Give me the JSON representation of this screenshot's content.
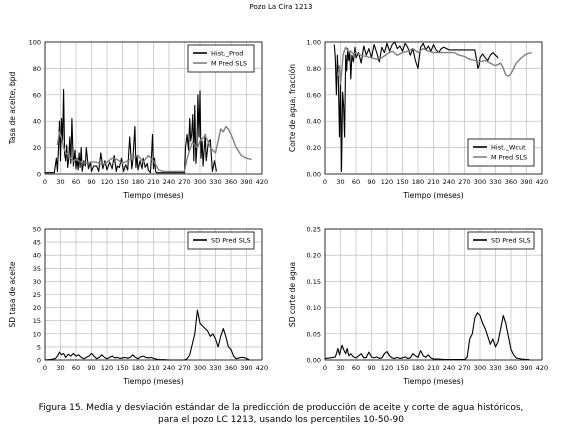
{
  "figure": {
    "title": "Pozo La Cira 1213",
    "caption_line1": "Figura 15. Media y desviación estándar de la predicción de producción de aceite y corte de agua históricos,",
    "caption_line2": "para el pozo LC 1213, usando los percentiles 10-50-90"
  },
  "colors": {
    "historic": "#000000",
    "predicted": "#808080",
    "sd": "#000000",
    "grid": "#b4b4b4"
  },
  "chart_data": [
    {
      "type": "line",
      "xlabel": "Tiempo (meses)",
      "ylabel": "Tasa de aceite, bpd",
      "xlim": [
        0,
        420
      ],
      "ylim": [
        0,
        100
      ],
      "xticks": [
        0,
        30,
        60,
        90,
        120,
        150,
        180,
        210,
        240,
        270,
        300,
        330,
        360,
        390,
        420
      ],
      "yticks": [
        0,
        20,
        40,
        60,
        80,
        100
      ],
      "ytick_labels": [
        "0",
        "20",
        "40",
        "60",
        "80",
        "100"
      ],
      "legend_position": "top-right",
      "grid": true,
      "series": [
        {
          "name": "Hist._Prod",
          "color": "#000000",
          "x": [
            0,
            10,
            18,
            22,
            24,
            26,
            28,
            30,
            32,
            34,
            36,
            38,
            40,
            42,
            44,
            46,
            48,
            50,
            52,
            55,
            58,
            60,
            62,
            64,
            66,
            68,
            70,
            72,
            75,
            78,
            80,
            84,
            88,
            90,
            94,
            100,
            104,
            108,
            112,
            116,
            120,
            125,
            130,
            134,
            138,
            140,
            144,
            148,
            152,
            156,
            160,
            164,
            168,
            170,
            174,
            176,
            178,
            180,
            184,
            188,
            190,
            194,
            198,
            200,
            204,
            206,
            208,
            210,
            212,
            214,
            216,
            220,
            230,
            240,
            250,
            260,
            266,
            270,
            272,
            275,
            278,
            280,
            282,
            284,
            286,
            288,
            290,
            292,
            294,
            296,
            298,
            300,
            302,
            304,
            306,
            308,
            310,
            312,
            316,
            320,
            324,
            328,
            332
          ],
          "y": [
            1,
            1,
            1,
            12,
            2,
            18,
            40,
            10,
            42,
            25,
            64,
            15,
            10,
            22,
            5,
            12,
            28,
            8,
            42,
            6,
            18,
            4,
            12,
            3,
            16,
            5,
            20,
            2,
            10,
            6,
            20,
            4,
            9,
            2,
            6,
            6,
            2,
            16,
            4,
            10,
            3,
            9,
            4,
            14,
            2,
            6,
            5,
            12,
            2,
            7,
            3,
            28,
            4,
            10,
            36,
            5,
            14,
            3,
            10,
            4,
            12,
            5,
            8,
            3,
            1,
            12,
            30,
            4,
            12,
            2,
            1,
            1,
            1,
            1,
            1,
            1,
            1,
            1,
            20,
            30,
            18,
            42,
            25,
            30,
            45,
            10,
            52,
            8,
            20,
            60,
            28,
            63,
            12,
            25,
            6,
            18,
            30,
            10,
            24,
            26,
            2,
            10,
            2
          ]
        },
        {
          "name": "M Pred SLS",
          "color": "#808080",
          "x": [
            24,
            28,
            32,
            36,
            40,
            45,
            50,
            55,
            60,
            70,
            80,
            90,
            100,
            110,
            120,
            130,
            140,
            150,
            160,
            170,
            180,
            190,
            200,
            210,
            220,
            230,
            240,
            250,
            260,
            270,
            275,
            280,
            285,
            290,
            295,
            300,
            305,
            310,
            315,
            320,
            325,
            330,
            335,
            340,
            345,
            350,
            355,
            360,
            370,
            380,
            390,
            400
          ],
          "y": [
            22,
            32,
            27,
            20,
            16,
            14,
            12,
            10,
            11,
            9,
            8,
            9,
            9,
            7,
            9,
            12,
            11,
            8,
            10,
            12,
            14,
            9,
            14,
            10,
            3,
            2,
            2,
            2,
            2,
            2,
            12,
            18,
            24,
            22,
            20,
            25,
            27,
            29,
            25,
            20,
            18,
            16,
            25,
            34,
            32,
            36,
            34,
            30,
            20,
            14,
            12,
            11
          ]
        }
      ]
    },
    {
      "type": "line",
      "xlabel": "Tiempo (meses)",
      "ylabel": "Corte de agua, fracción",
      "xlim": [
        0,
        420
      ],
      "ylim": [
        0,
        1
      ],
      "xticks": [
        0,
        30,
        60,
        90,
        120,
        150,
        180,
        210,
        240,
        270,
        300,
        330,
        360,
        390,
        420
      ],
      "yticks": [
        0,
        0.2,
        0.4,
        0.6,
        0.8,
        1.0
      ],
      "ytick_labels": [
        "0.00",
        "0.20",
        "0.40",
        "0.60",
        "0.80",
        "1.00"
      ],
      "legend_position": "bottom-right",
      "grid": true,
      "series": [
        {
          "name": "Hist._Wcut",
          "color": "#000000",
          "x": [
            18,
            20,
            22,
            24,
            26,
            28,
            30,
            32,
            34,
            36,
            38,
            40,
            42,
            44,
            46,
            48,
            50,
            52,
            55,
            58,
            60,
            65,
            70,
            75,
            80,
            85,
            90,
            95,
            100,
            105,
            110,
            115,
            120,
            125,
            130,
            135,
            140,
            145,
            150,
            155,
            160,
            165,
            170,
            175,
            180,
            185,
            190,
            195,
            200,
            205,
            210,
            215,
            220,
            225,
            230,
            240,
            250,
            260,
            270,
            280,
            290,
            294,
            296,
            298,
            300,
            305,
            310,
            315,
            320,
            325,
            330,
            335
          ],
          "y": [
            0.98,
            0.88,
            0.6,
            0.9,
            0.7,
            0.28,
            0.72,
            0.02,
            0.62,
            0.52,
            0.28,
            0.9,
            0.78,
            0.95,
            0.86,
            0.92,
            0.72,
            0.9,
            0.85,
            0.96,
            0.88,
            0.92,
            0.84,
            0.97,
            0.9,
            0.95,
            0.88,
            0.98,
            0.92,
            0.85,
            0.96,
            0.92,
            0.99,
            0.93,
            0.98,
            1.0,
            0.95,
            0.97,
            0.93,
            0.99,
            0.96,
            0.9,
            0.95,
            0.86,
            0.8,
            0.96,
            0.99,
            0.94,
            0.97,
            0.93,
            0.98,
            0.94,
            0.92,
            0.95,
            0.96,
            0.94,
            0.94,
            0.94,
            0.94,
            0.94,
            0.94,
            0.85,
            0.8,
            0.82,
            0.88,
            0.91,
            0.88,
            0.86,
            0.9,
            0.92,
            0.9,
            0.88
          ]
        },
        {
          "name": "M Pred SLS",
          "color": "#808080",
          "x": [
            24,
            28,
            30,
            32,
            35,
            38,
            40,
            45,
            50,
            55,
            60,
            70,
            80,
            90,
            100,
            110,
            120,
            130,
            140,
            150,
            160,
            170,
            180,
            190,
            200,
            210,
            220,
            230,
            240,
            250,
            260,
            270,
            280,
            290,
            300,
            310,
            320,
            330,
            340,
            345,
            350,
            355,
            360,
            365,
            370,
            380,
            390,
            400
          ],
          "y": [
            0.74,
            0.82,
            0.68,
            0.76,
            0.9,
            0.94,
            0.96,
            0.93,
            0.93,
            0.91,
            0.92,
            0.9,
            0.89,
            0.88,
            0.87,
            0.88,
            0.91,
            0.93,
            0.9,
            0.92,
            0.93,
            0.95,
            0.92,
            0.95,
            0.93,
            0.92,
            0.92,
            0.92,
            0.92,
            0.92,
            0.9,
            0.89,
            0.87,
            0.86,
            0.85,
            0.86,
            0.84,
            0.82,
            0.84,
            0.8,
            0.75,
            0.74,
            0.76,
            0.8,
            0.84,
            0.88,
            0.91,
            0.92
          ]
        }
      ]
    },
    {
      "type": "line",
      "xlabel": "Tiempo (meses)",
      "ylabel": "SD tasa de aceite",
      "xlim": [
        0,
        420
      ],
      "ylim": [
        0,
        50
      ],
      "xticks": [
        0,
        30,
        60,
        90,
        120,
        150,
        180,
        210,
        240,
        270,
        300,
        330,
        360,
        390,
        420
      ],
      "yticks": [
        0,
        5,
        10,
        15,
        20,
        25,
        30,
        35,
        40,
        45,
        50
      ],
      "ytick_labels": [
        "0",
        "5",
        "10",
        "15",
        "20",
        "25",
        "30",
        "35",
        "40",
        "45",
        "50"
      ],
      "legend_position": "top-right",
      "grid": true,
      "series": [
        {
          "name": "SD Pred SLS",
          "color": "#000000",
          "x": [
            0,
            10,
            20,
            25,
            28,
            32,
            36,
            40,
            45,
            50,
            55,
            60,
            65,
            70,
            75,
            80,
            85,
            90,
            95,
            100,
            105,
            110,
            115,
            120,
            125,
            130,
            135,
            140,
            145,
            150,
            155,
            160,
            165,
            170,
            175,
            180,
            185,
            190,
            195,
            200,
            205,
            210,
            215,
            220,
            230,
            240,
            250,
            260,
            270,
            275,
            280,
            285,
            290,
            295,
            300,
            305,
            310,
            315,
            320,
            325,
            330,
            335,
            340,
            345,
            350,
            355,
            360,
            365,
            370,
            380,
            385,
            390,
            395
          ],
          "y": [
            0,
            0.2,
            0.5,
            1.8,
            3,
            2,
            2.5,
            1,
            2.2,
            1.5,
            2.5,
            1.5,
            2,
            1,
            0.5,
            1,
            1.5,
            2.5,
            1.5,
            0.5,
            1,
            2,
            1,
            0.5,
            1,
            1.5,
            0.8,
            1,
            0.6,
            0.8,
            1,
            0.7,
            1,
            2,
            1,
            0.5,
            1.2,
            1.5,
            1,
            0.8,
            1,
            0.6,
            0.4,
            0.2,
            0.1,
            0,
            0,
            0,
            0,
            0.5,
            2,
            6,
            10,
            19,
            14,
            13,
            12,
            11,
            9,
            10,
            8,
            5,
            9,
            12,
            9,
            5,
            4,
            1.5,
            0.5,
            1,
            1,
            0.5,
            0.2
          ]
        }
      ]
    },
    {
      "type": "line",
      "xlabel": "Tiempo (meses)",
      "ylabel": "SD corte de agua",
      "xlim": [
        0,
        420
      ],
      "ylim": [
        0,
        0.25
      ],
      "xticks": [
        0,
        30,
        60,
        90,
        120,
        150,
        180,
        210,
        240,
        270,
        300,
        330,
        360,
        390,
        420
      ],
      "yticks": [
        0,
        0.05,
        0.1,
        0.15,
        0.2,
        0.25
      ],
      "ytick_labels": [
        "0.00",
        "0.05",
        "0.10",
        "0.15",
        "0.20",
        "0.25"
      ],
      "legend_position": "top-right",
      "grid": true,
      "series": [
        {
          "name": "SD Pred SLS",
          "color": "#000000",
          "x": [
            0,
            10,
            20,
            22,
            25,
            28,
            30,
            33,
            36,
            40,
            43,
            46,
            50,
            55,
            60,
            65,
            70,
            75,
            80,
            85,
            90,
            95,
            100,
            105,
            110,
            115,
            120,
            125,
            130,
            135,
            140,
            145,
            150,
            155,
            160,
            165,
            170,
            175,
            180,
            185,
            190,
            195,
            200,
            205,
            210,
            220,
            230,
            240,
            250,
            260,
            270,
            275,
            280,
            285,
            290,
            295,
            300,
            305,
            310,
            315,
            320,
            325,
            330,
            335,
            340,
            345,
            350,
            355,
            360,
            365,
            370,
            380,
            390,
            395
          ],
          "y": [
            0.003,
            0.004,
            0.006,
            0.012,
            0.022,
            0.01,
            0.018,
            0.028,
            0.02,
            0.012,
            0.022,
            0.008,
            0.012,
            0.006,
            0.004,
            0.008,
            0.012,
            0.004,
            0.005,
            0.015,
            0.006,
            0.004,
            0.006,
            0.003,
            0.004,
            0.012,
            0.016,
            0.008,
            0.004,
            0.003,
            0.005,
            0.003,
            0.004,
            0.006,
            0.003,
            0.004,
            0.012,
            0.008,
            0.005,
            0.018,
            0.008,
            0.005,
            0.01,
            0.004,
            0.002,
            0.002,
            0.001,
            0.001,
            0.001,
            0.001,
            0.001,
            0.005,
            0.04,
            0.05,
            0.08,
            0.09,
            0.085,
            0.07,
            0.06,
            0.045,
            0.03,
            0.04,
            0.025,
            0.035,
            0.06,
            0.085,
            0.07,
            0.045,
            0.02,
            0.01,
            0.004,
            0.002,
            0.001,
            0.001
          ]
        }
      ]
    }
  ]
}
